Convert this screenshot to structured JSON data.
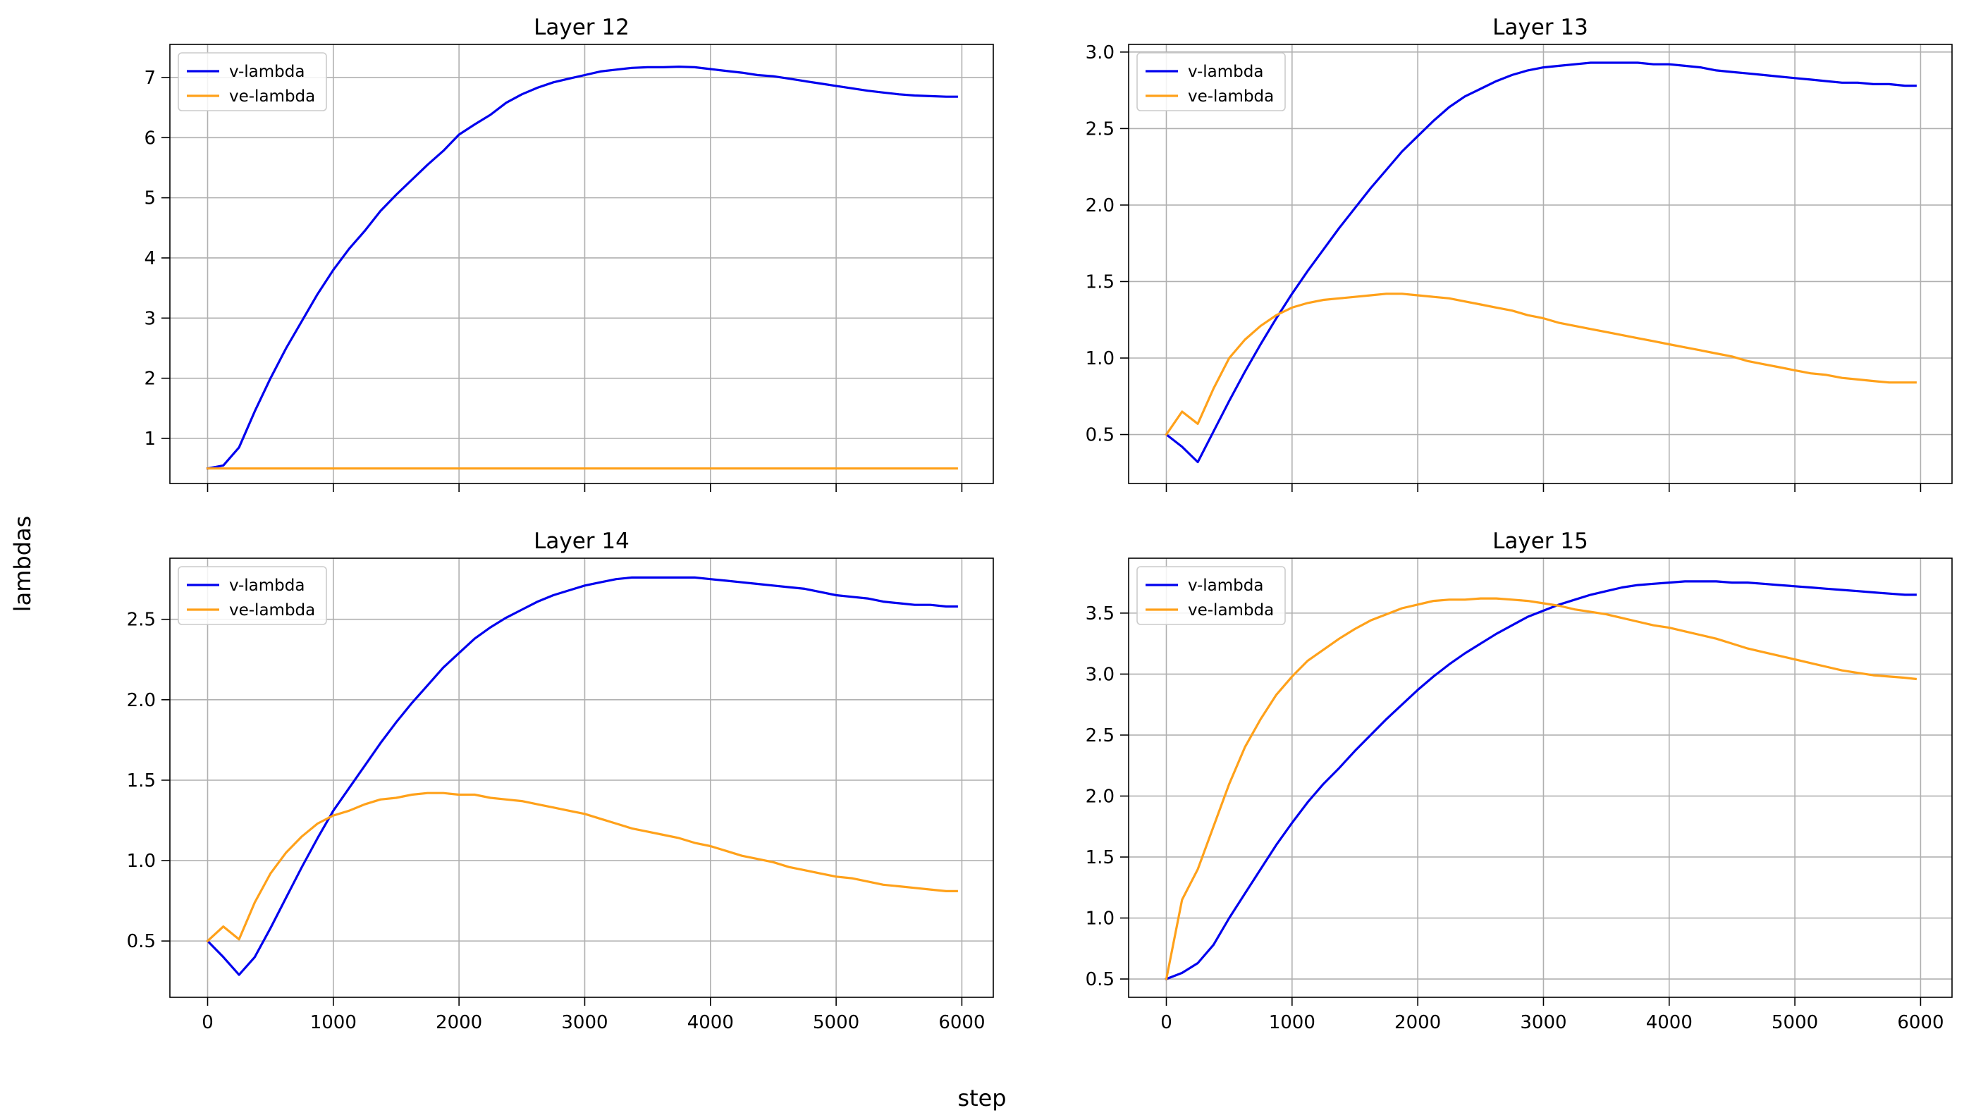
{
  "figure": {
    "xlabel": "step",
    "ylabel": "lambdas"
  },
  "chart_data": [
    {
      "type": "line",
      "title": "Layer 12",
      "xlim": [
        -300,
        6250
      ],
      "ylim": [
        0.25,
        7.55
      ],
      "xticks": [
        "0",
        "1000",
        "2000",
        "3000",
        "4000",
        "5000",
        "6000"
      ],
      "yticks": [
        "1",
        "2",
        "3",
        "4",
        "5",
        "6",
        "7"
      ],
      "show_xtick_labels": false,
      "grid": true,
      "legend": "top-left",
      "x": [
        0,
        125,
        250,
        375,
        500,
        625,
        750,
        875,
        1000,
        1125,
        1250,
        1375,
        1500,
        1625,
        1750,
        1875,
        2000,
        2125,
        2250,
        2375,
        2500,
        2625,
        2750,
        2875,
        3000,
        3125,
        3250,
        3375,
        3500,
        3625,
        3750,
        3875,
        4000,
        4125,
        4250,
        4375,
        4500,
        4625,
        4750,
        4875,
        5000,
        5125,
        5250,
        5375,
        5500,
        5625,
        5750,
        5875,
        5960
      ],
      "series": [
        {
          "name": "v-lambda",
          "color": "#0000ee",
          "values": [
            0.5,
            0.55,
            0.85,
            1.45,
            2.0,
            2.5,
            2.95,
            3.4,
            3.8,
            4.15,
            4.45,
            4.78,
            5.05,
            5.3,
            5.55,
            5.78,
            6.05,
            6.22,
            6.38,
            6.58,
            6.72,
            6.83,
            6.92,
            6.98,
            7.04,
            7.1,
            7.13,
            7.16,
            7.17,
            7.17,
            7.18,
            7.17,
            7.14,
            7.11,
            7.08,
            7.04,
            7.02,
            6.98,
            6.94,
            6.9,
            6.86,
            6.82,
            6.78,
            6.75,
            6.72,
            6.7,
            6.69,
            6.68,
            6.68
          ]
        },
        {
          "name": "ve-lambda",
          "color": "#ffa11a",
          "values": [
            0.5,
            0.5,
            0.5,
            0.5,
            0.5,
            0.5,
            0.5,
            0.5,
            0.5,
            0.5,
            0.5,
            0.5,
            0.5,
            0.5,
            0.5,
            0.5,
            0.5,
            0.5,
            0.5,
            0.5,
            0.5,
            0.5,
            0.5,
            0.5,
            0.5,
            0.5,
            0.5,
            0.5,
            0.5,
            0.5,
            0.5,
            0.5,
            0.5,
            0.5,
            0.5,
            0.5,
            0.5,
            0.5,
            0.5,
            0.5,
            0.5,
            0.5,
            0.5,
            0.5,
            0.5,
            0.5,
            0.5,
            0.5,
            0.5
          ]
        }
      ]
    },
    {
      "type": "line",
      "title": "Layer 13",
      "xlim": [
        -300,
        6250
      ],
      "ylim": [
        0.18,
        3.05
      ],
      "xticks": [
        "0",
        "1000",
        "2000",
        "3000",
        "4000",
        "5000",
        "6000"
      ],
      "yticks": [
        "0.5",
        "1.0",
        "1.5",
        "2.0",
        "2.5",
        "3.0"
      ],
      "show_xtick_labels": false,
      "grid": true,
      "legend": "top-left",
      "x": [
        0,
        125,
        250,
        375,
        500,
        625,
        750,
        875,
        1000,
        1125,
        1250,
        1375,
        1500,
        1625,
        1750,
        1875,
        2000,
        2125,
        2250,
        2375,
        2500,
        2625,
        2750,
        2875,
        3000,
        3125,
        3250,
        3375,
        3500,
        3625,
        3750,
        3875,
        4000,
        4125,
        4250,
        4375,
        4500,
        4625,
        4750,
        4875,
        5000,
        5125,
        5250,
        5375,
        5500,
        5625,
        5750,
        5875,
        5960
      ],
      "series": [
        {
          "name": "v-lambda",
          "color": "#0000ee",
          "values": [
            0.5,
            0.42,
            0.32,
            0.52,
            0.72,
            0.91,
            1.09,
            1.26,
            1.42,
            1.57,
            1.71,
            1.85,
            1.98,
            2.11,
            2.23,
            2.35,
            2.45,
            2.55,
            2.64,
            2.71,
            2.76,
            2.81,
            2.85,
            2.88,
            2.9,
            2.91,
            2.92,
            2.93,
            2.93,
            2.93,
            2.93,
            2.92,
            2.92,
            2.91,
            2.9,
            2.88,
            2.87,
            2.86,
            2.85,
            2.84,
            2.83,
            2.82,
            2.81,
            2.8,
            2.8,
            2.79,
            2.79,
            2.78,
            2.78
          ]
        },
        {
          "name": "ve-lambda",
          "color": "#ffa11a",
          "values": [
            0.5,
            0.65,
            0.57,
            0.8,
            1.0,
            1.12,
            1.21,
            1.28,
            1.33,
            1.36,
            1.38,
            1.39,
            1.4,
            1.41,
            1.42,
            1.42,
            1.41,
            1.4,
            1.39,
            1.37,
            1.35,
            1.33,
            1.31,
            1.28,
            1.26,
            1.23,
            1.21,
            1.19,
            1.17,
            1.15,
            1.13,
            1.11,
            1.09,
            1.07,
            1.05,
            1.03,
            1.01,
            0.98,
            0.96,
            0.94,
            0.92,
            0.9,
            0.89,
            0.87,
            0.86,
            0.85,
            0.84,
            0.84,
            0.84
          ]
        }
      ]
    },
    {
      "type": "line",
      "title": "Layer 14",
      "xlim": [
        -300,
        6250
      ],
      "ylim": [
        0.15,
        2.88
      ],
      "xticks": [
        "0",
        "1000",
        "2000",
        "3000",
        "4000",
        "5000",
        "6000"
      ],
      "yticks": [
        "0.5",
        "1.0",
        "1.5",
        "2.0",
        "2.5"
      ],
      "show_xtick_labels": true,
      "grid": true,
      "legend": "top-left",
      "x": [
        0,
        125,
        250,
        375,
        500,
        625,
        750,
        875,
        1000,
        1125,
        1250,
        1375,
        1500,
        1625,
        1750,
        1875,
        2000,
        2125,
        2250,
        2375,
        2500,
        2625,
        2750,
        2875,
        3000,
        3125,
        3250,
        3375,
        3500,
        3625,
        3750,
        3875,
        4000,
        4125,
        4250,
        4375,
        4500,
        4625,
        4750,
        4875,
        5000,
        5125,
        5250,
        5375,
        5500,
        5625,
        5750,
        5875,
        5960
      ],
      "series": [
        {
          "name": "v-lambda",
          "color": "#0000ee",
          "values": [
            0.5,
            0.4,
            0.29,
            0.4,
            0.58,
            0.77,
            0.96,
            1.14,
            1.31,
            1.45,
            1.59,
            1.73,
            1.86,
            1.98,
            2.09,
            2.2,
            2.29,
            2.38,
            2.45,
            2.51,
            2.56,
            2.61,
            2.65,
            2.68,
            2.71,
            2.73,
            2.75,
            2.76,
            2.76,
            2.76,
            2.76,
            2.76,
            2.75,
            2.74,
            2.73,
            2.72,
            2.71,
            2.7,
            2.69,
            2.67,
            2.65,
            2.64,
            2.63,
            2.61,
            2.6,
            2.59,
            2.59,
            2.58,
            2.58
          ]
        },
        {
          "name": "ve-lambda",
          "color": "#ffa11a",
          "values": [
            0.5,
            0.59,
            0.51,
            0.74,
            0.92,
            1.05,
            1.15,
            1.23,
            1.28,
            1.31,
            1.35,
            1.38,
            1.39,
            1.41,
            1.42,
            1.42,
            1.41,
            1.41,
            1.39,
            1.38,
            1.37,
            1.35,
            1.33,
            1.31,
            1.29,
            1.26,
            1.23,
            1.2,
            1.18,
            1.16,
            1.14,
            1.11,
            1.09,
            1.06,
            1.03,
            1.01,
            0.99,
            0.96,
            0.94,
            0.92,
            0.9,
            0.89,
            0.87,
            0.85,
            0.84,
            0.83,
            0.82,
            0.81,
            0.81
          ]
        }
      ]
    },
    {
      "type": "line",
      "title": "Layer 15",
      "xlim": [
        -300,
        6250
      ],
      "ylim": [
        0.35,
        3.95
      ],
      "xticks": [
        "0",
        "1000",
        "2000",
        "3000",
        "4000",
        "5000",
        "6000"
      ],
      "yticks": [
        "0.5",
        "1.0",
        "1.5",
        "2.0",
        "2.5",
        "3.0",
        "3.5"
      ],
      "show_xtick_labels": true,
      "grid": true,
      "legend": "top-left",
      "x": [
        0,
        125,
        250,
        375,
        500,
        625,
        750,
        875,
        1000,
        1125,
        1250,
        1375,
        1500,
        1625,
        1750,
        1875,
        2000,
        2125,
        2250,
        2375,
        2500,
        2625,
        2750,
        2875,
        3000,
        3125,
        3250,
        3375,
        3500,
        3625,
        3750,
        3875,
        4000,
        4125,
        4250,
        4375,
        4500,
        4625,
        4750,
        4875,
        5000,
        5125,
        5250,
        5375,
        5500,
        5625,
        5750,
        5875,
        5960
      ],
      "series": [
        {
          "name": "v-lambda",
          "color": "#0000ee",
          "values": [
            0.5,
            0.55,
            0.63,
            0.78,
            1.0,
            1.2,
            1.4,
            1.6,
            1.78,
            1.95,
            2.1,
            2.23,
            2.37,
            2.5,
            2.63,
            2.75,
            2.87,
            2.98,
            3.08,
            3.17,
            3.25,
            3.33,
            3.4,
            3.47,
            3.52,
            3.57,
            3.61,
            3.65,
            3.68,
            3.71,
            3.73,
            3.74,
            3.75,
            3.76,
            3.76,
            3.76,
            3.75,
            3.75,
            3.74,
            3.73,
            3.72,
            3.71,
            3.7,
            3.69,
            3.68,
            3.67,
            3.66,
            3.65,
            3.65
          ]
        },
        {
          "name": "ve-lambda",
          "color": "#ffa11a",
          "values": [
            0.5,
            1.15,
            1.4,
            1.75,
            2.1,
            2.4,
            2.63,
            2.83,
            2.98,
            3.11,
            3.2,
            3.29,
            3.37,
            3.44,
            3.49,
            3.54,
            3.57,
            3.6,
            3.61,
            3.61,
            3.62,
            3.62,
            3.61,
            3.6,
            3.58,
            3.56,
            3.53,
            3.51,
            3.49,
            3.46,
            3.43,
            3.4,
            3.38,
            3.35,
            3.32,
            3.29,
            3.25,
            3.21,
            3.18,
            3.15,
            3.12,
            3.09,
            3.06,
            3.03,
            3.01,
            2.99,
            2.98,
            2.97,
            2.96
          ]
        }
      ]
    }
  ]
}
